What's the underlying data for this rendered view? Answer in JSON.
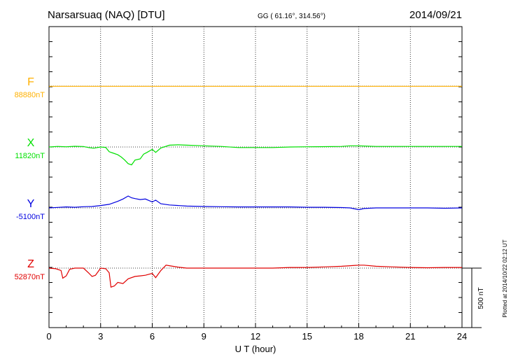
{
  "header": {
    "station": "Narsarsuaq (NAQ)  [DTU]",
    "coords": "GG ( 61.16°, 314.56°)",
    "date": "2014/09/21"
  },
  "footer": {
    "plotted": "Plotted at 2014/10/22 02:12 UT"
  },
  "scale_bar": {
    "label": "500 nT"
  },
  "colors": {
    "F": "#ffb000",
    "X": "#00e000",
    "Y": "#0000e0",
    "Z": "#e00000",
    "axis": "#000000"
  },
  "chart_data": {
    "type": "line",
    "xlabel": "U T (hour)",
    "xlim": [
      0,
      24
    ],
    "x_ticks": [
      "0",
      "3",
      "6",
      "9",
      "12",
      "15",
      "18",
      "21",
      "24"
    ],
    "scale_nT_per_bar": 500,
    "series": [
      {
        "name": "F",
        "baseline_label": "88880nT",
        "x": [
          0,
          6,
          12,
          18,
          24
        ],
        "values": [
          -2,
          -2,
          -2,
          -2,
          -2
        ]
      },
      {
        "name": "X",
        "baseline_label": "11820nT",
        "x": [
          0,
          0.5,
          1,
          1.5,
          2,
          2.3,
          2.6,
          3,
          3.3,
          3.5,
          3.7,
          4,
          4.2,
          4.4,
          4.6,
          4.8,
          5,
          5.3,
          5.5,
          5.7,
          6,
          6.2,
          6.5,
          7,
          7.5,
          8,
          9,
          10,
          11,
          12,
          13,
          14,
          15,
          16,
          17,
          17.5,
          18,
          18.3,
          19,
          20,
          21,
          22,
          23,
          24
        ],
        "values": [
          0,
          5,
          2,
          6,
          4,
          -5,
          -10,
          0,
          -4,
          -40,
          -50,
          -65,
          -85,
          -110,
          -140,
          -150,
          -110,
          -100,
          -60,
          -45,
          -20,
          -45,
          -8,
          15,
          18,
          15,
          10,
          5,
          -5,
          -5,
          -5,
          0,
          2,
          3,
          5,
          10,
          10,
          8,
          5,
          5,
          5,
          5,
          5,
          5
        ]
      },
      {
        "name": "Y",
        "baseline_label": "-5100nT",
        "x": [
          0,
          0.5,
          1,
          1.5,
          2,
          2.5,
          3,
          3.5,
          4,
          4.3,
          4.6,
          4.8,
          5,
          5.3,
          5.6,
          6,
          6.2,
          6.5,
          7,
          8,
          9,
          10,
          11,
          12,
          13,
          14,
          15,
          16,
          17,
          17.5,
          18,
          18.3,
          19,
          20,
          21,
          22,
          23,
          24
        ],
        "values": [
          0,
          4,
          8,
          5,
          10,
          12,
          20,
          30,
          55,
          75,
          100,
          85,
          78,
          70,
          75,
          50,
          65,
          35,
          25,
          15,
          12,
          10,
          8,
          8,
          8,
          8,
          5,
          5,
          3,
          0,
          -15,
          -5,
          0,
          0,
          0,
          0,
          -3,
          0
        ]
      },
      {
        "name": "Z",
        "baseline_label": "52870nT",
        "x": [
          0,
          0.4,
          0.7,
          0.8,
          1,
          1.2,
          1.5,
          2,
          2.3,
          2.5,
          2.7,
          3,
          3.3,
          3.5,
          3.6,
          3.8,
          4,
          4.3,
          4.6,
          5,
          5.3,
          5.6,
          6,
          6.2,
          6.5,
          6.8,
          7,
          7.5,
          8,
          9,
          10,
          11,
          12,
          13,
          14,
          15,
          16,
          17,
          17.5,
          18,
          18.3,
          19,
          20,
          21,
          22,
          23,
          24
        ],
        "values": [
          0,
          -5,
          -20,
          -85,
          -65,
          -10,
          0,
          0,
          -40,
          -70,
          -60,
          0,
          -5,
          -40,
          -160,
          -150,
          -120,
          -130,
          -90,
          -70,
          -65,
          -60,
          -45,
          -80,
          -20,
          25,
          20,
          8,
          0,
          0,
          0,
          0,
          0,
          0,
          5,
          5,
          10,
          15,
          20,
          25,
          25,
          15,
          10,
          5,
          3,
          5,
          5
        ]
      }
    ]
  }
}
